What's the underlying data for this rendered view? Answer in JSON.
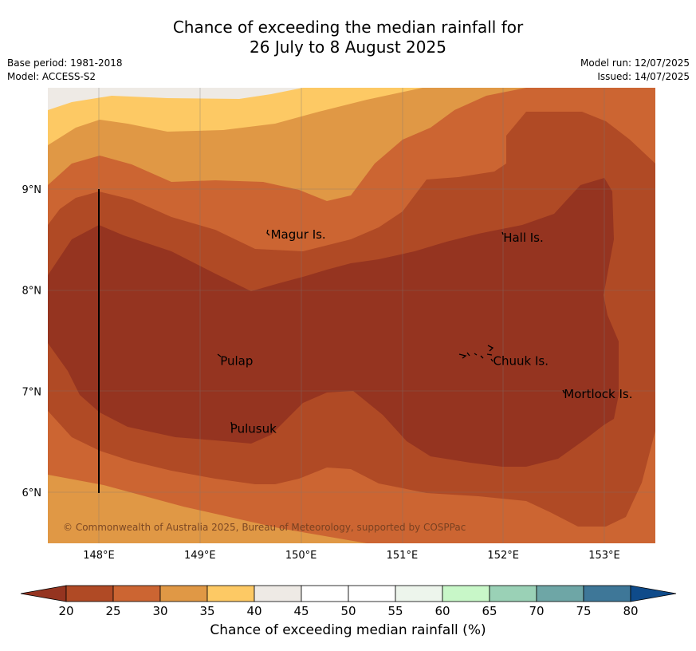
{
  "title": {
    "line1": "Chance of exceeding the median rainfall for",
    "line2": "26 July to 8 August 2025"
  },
  "meta_left": {
    "base_period": "Base period: 1981-2018",
    "model": "Model: ACCESS-S2"
  },
  "meta_right": {
    "model_run": "Model run: 12/07/2025",
    "issued": "Issued: 14/07/2025"
  },
  "axes": {
    "lat_ticks": [
      {
        "value": 9,
        "label": "9°N"
      },
      {
        "value": 8,
        "label": "8°N"
      },
      {
        "value": 7,
        "label": "7°N"
      },
      {
        "value": 6,
        "label": "6°N"
      }
    ],
    "lon_ticks": [
      {
        "value": 148,
        "label": "148°E"
      },
      {
        "value": 149,
        "label": "149°E"
      },
      {
        "value": 150,
        "label": "150°E"
      },
      {
        "value": 151,
        "label": "151°E"
      },
      {
        "value": 152,
        "label": "152°E"
      },
      {
        "value": 153,
        "label": "153°E"
      }
    ],
    "lon_range": [
      147.5,
      153.5
    ],
    "lat_range": [
      5.5,
      10.0
    ]
  },
  "places": [
    {
      "name": "Magur Is.",
      "lon": 149.7,
      "lat": 8.55
    },
    {
      "name": "Hall Is.",
      "lon": 152.0,
      "lat": 8.52
    },
    {
      "name": "Pulap",
      "lon": 149.2,
      "lat": 7.3
    },
    {
      "name": "Chuuk Is.",
      "lon": 151.9,
      "lat": 7.3
    },
    {
      "name": "Mortlock Is.",
      "lon": 152.6,
      "lat": 6.97
    },
    {
      "name": "Pulusuk",
      "lon": 149.3,
      "lat": 6.63
    }
  ],
  "copyright": "© Commonwealth of Australia 2025, Bureau of Meteorology, supported by COSPPac",
  "colorbar": {
    "ticks": [
      "20",
      "25",
      "30",
      "35",
      "40",
      "45",
      "50",
      "55",
      "60",
      "65",
      "70",
      "75",
      "80"
    ],
    "colors": [
      "#b04a25",
      "#cc6532",
      "#e09845",
      "#fdc964",
      "#eeeae5",
      "#ffffff",
      "#ffffff",
      "#edf5ec",
      "#c8f7c8",
      "#9ad1b6",
      "#6ea6a6",
      "#3e7798"
    ],
    "under_color": "#953420",
    "over_color": "#0f4b8a",
    "label": "Chance of exceeding median rainfall (%)"
  }
}
